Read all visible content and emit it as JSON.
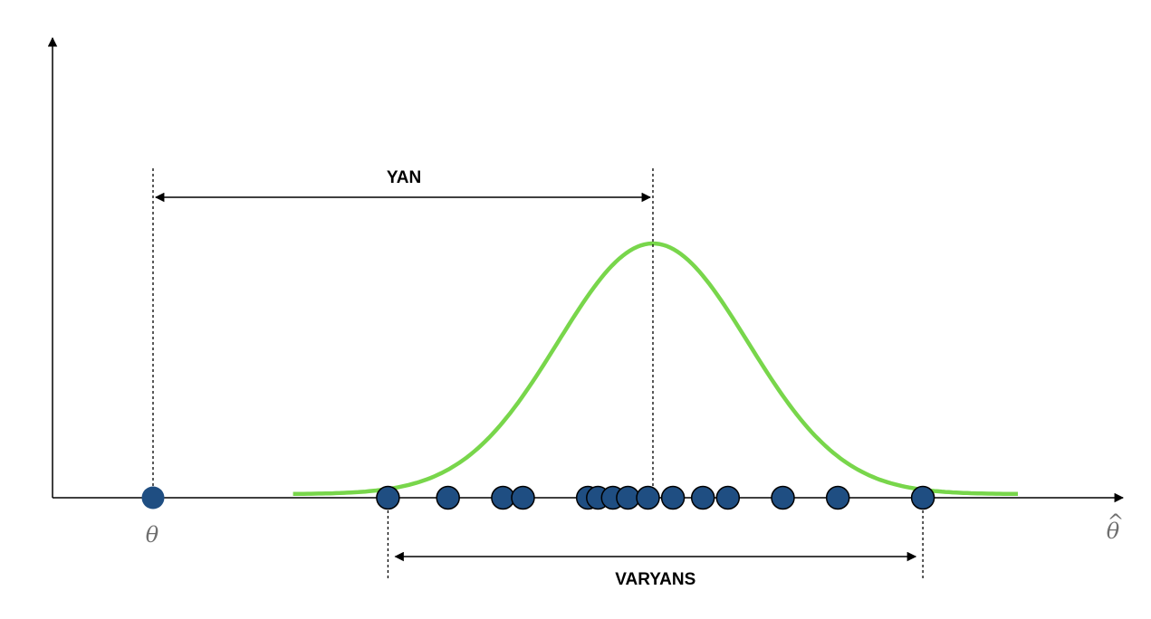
{
  "labels": {
    "bias": "YAN",
    "variance": "VARYANS",
    "true_param": "θ",
    "estimate_axis_symbol": "θ",
    "estimate_axis_hat": "^"
  },
  "colors": {
    "curve": "#78d64b",
    "true_point": "#1f4e82",
    "estimate_point": "#1f4e82",
    "axis": "#000000",
    "label_gray": "#6f6f6f"
  },
  "theta": 0.0,
  "distribution": {
    "mean": 1.0,
    "sd": 0.19,
    "x_min": 0.28,
    "x_max": 1.73
  },
  "estimates": [
    0.47,
    0.59,
    0.7,
    0.74,
    0.87,
    0.89,
    0.92,
    0.95,
    0.99,
    1.04,
    1.1,
    1.15,
    1.26,
    1.37,
    1.54
  ],
  "variance_range": [
    0.47,
    1.54
  ]
}
